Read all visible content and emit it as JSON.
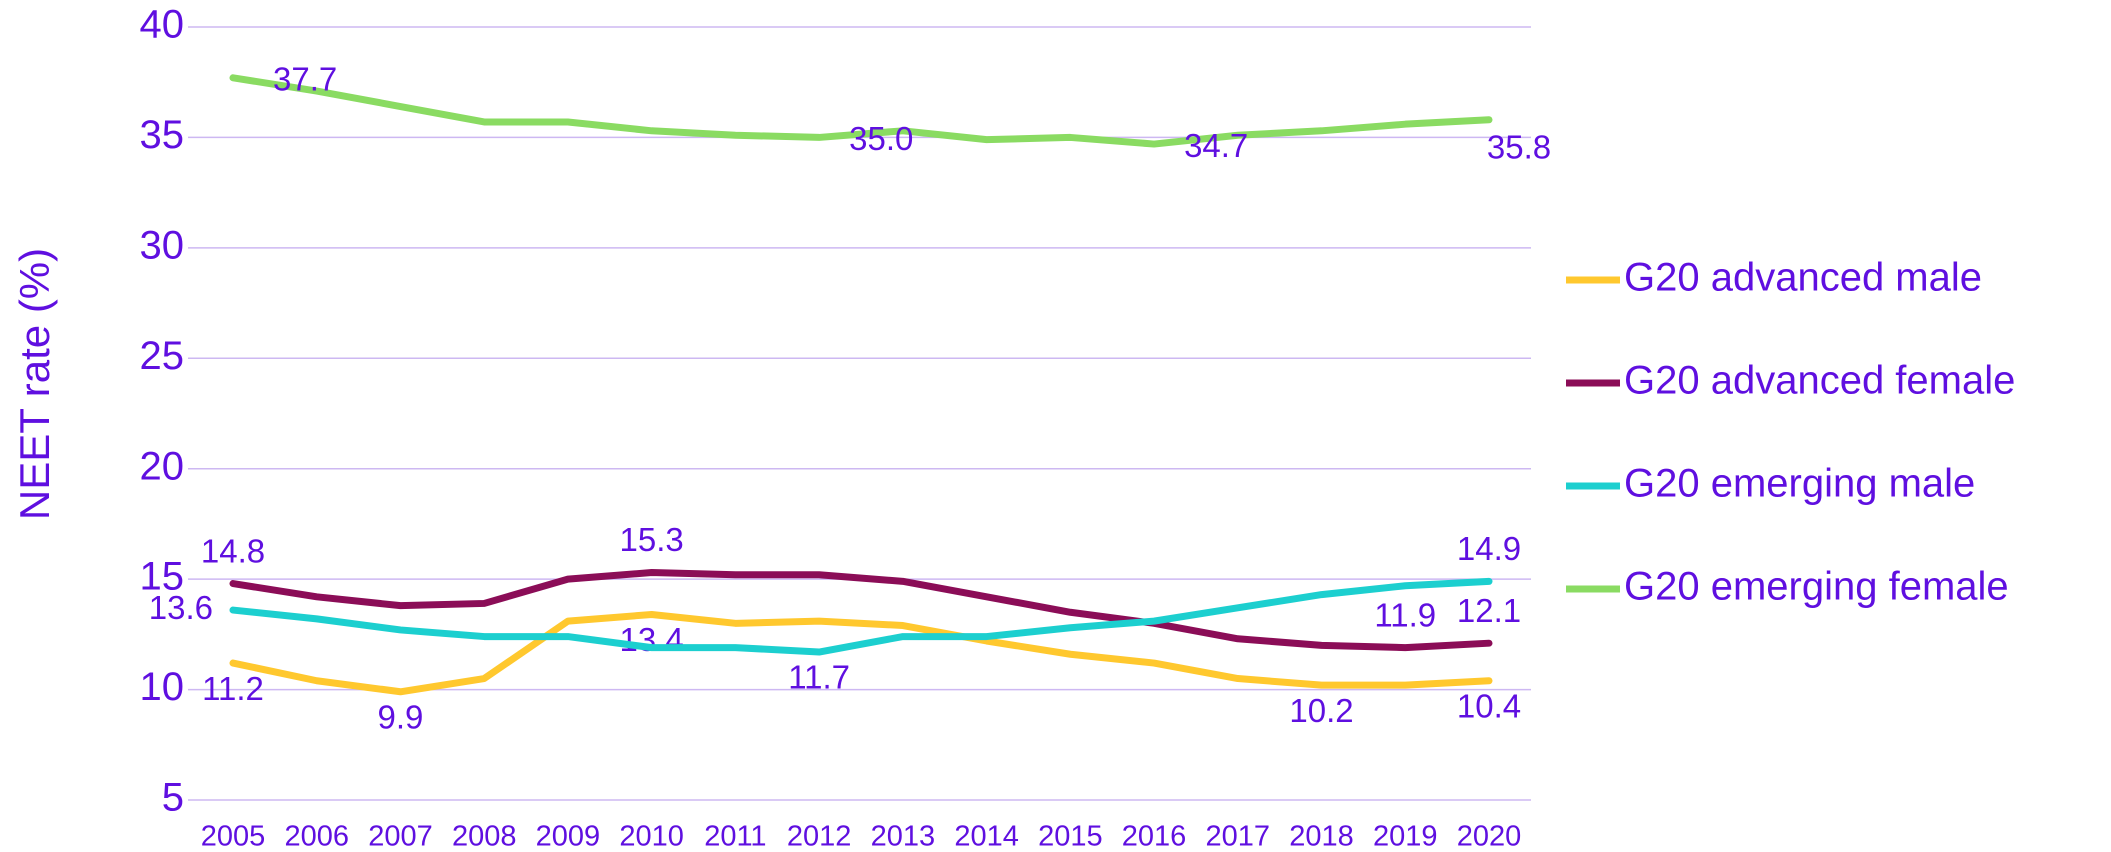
{
  "chart_data": {
    "type": "line",
    "y_label": "NEET rate (%)",
    "categories": [
      "2005",
      "2006",
      "2007",
      "2008",
      "2009",
      "2010",
      "2011",
      "2012",
      "2013",
      "2014",
      "2015",
      "2016",
      "2017",
      "2018",
      "2019",
      "2020"
    ],
    "ylim": [
      5,
      40
    ],
    "yticks": [
      5,
      10,
      15,
      20,
      25,
      30,
      35,
      40
    ],
    "grid": true,
    "legend": "right",
    "series": [
      {
        "name": "G20 advanced male",
        "color": "#ffc82e",
        "values": [
          11.2,
          10.4,
          9.9,
          10.5,
          13.1,
          13.4,
          13.0,
          13.1,
          12.9,
          12.2,
          11.6,
          11.2,
          10.5,
          10.2,
          10.2,
          10.4
        ],
        "value_labels": [
          "11.2",
          null,
          "9.9",
          null,
          null,
          "13.4",
          null,
          null,
          null,
          null,
          null,
          null,
          null,
          "10.2",
          null,
          "10.4"
        ]
      },
      {
        "name": "G20 advanced female",
        "color": "#8b0d57",
        "values": [
          14.8,
          14.2,
          13.8,
          13.9,
          15.0,
          15.3,
          15.2,
          15.2,
          14.9,
          14.2,
          13.5,
          13.0,
          12.3,
          12.0,
          11.9,
          12.1
        ],
        "value_labels": [
          "14.8",
          null,
          null,
          null,
          null,
          "15.3",
          null,
          null,
          null,
          null,
          null,
          null,
          null,
          null,
          "11.9",
          "12.1"
        ]
      },
      {
        "name": "G20 emerging male",
        "color": "#1ccfcf",
        "values": [
          13.6,
          13.2,
          12.7,
          12.4,
          12.4,
          11.9,
          11.9,
          11.7,
          12.4,
          12.4,
          12.8,
          13.1,
          13.7,
          14.3,
          14.7,
          14.9
        ],
        "value_labels": [
          "13.6",
          null,
          null,
          null,
          null,
          null,
          null,
          "11.7",
          null,
          null,
          null,
          null,
          null,
          null,
          null,
          "14.9"
        ]
      },
      {
        "name": "G20 emerging female",
        "color": "#8adb62",
        "values": [
          37.7,
          37.1,
          36.4,
          35.7,
          35.7,
          35.3,
          35.1,
          35.0,
          35.3,
          34.9,
          35.0,
          34.7,
          35.1,
          35.3,
          35.6,
          35.8
        ],
        "value_labels": [
          "37.7",
          null,
          null,
          null,
          null,
          null,
          null,
          "35.0",
          null,
          null,
          null,
          "34.7",
          null,
          null,
          null,
          "35.8"
        ]
      }
    ]
  }
}
